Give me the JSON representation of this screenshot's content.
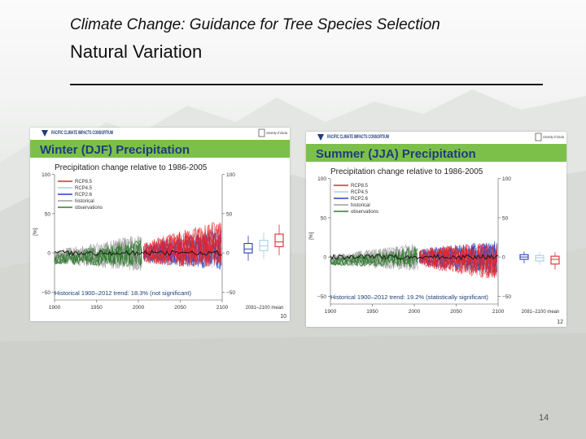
{
  "slide": {
    "title": "Climate Change: Guidance for Tree Species Selection",
    "subtitle": "Natural Variation",
    "number": "14"
  },
  "colors": {
    "header_green": "#7cc04a",
    "title_blue": "#1f3c7a",
    "rcp85": "#e5262c",
    "rcp45": "#a8cde6",
    "rcp26": "#2b3fb8",
    "historical": "#9e9e9e",
    "observations": "#2f7d2f"
  },
  "chart_data": [
    {
      "type": "line",
      "logo": "PACIFIC CLIMATE IMPACTS CONSORTIUM",
      "university": "University of Victoria",
      "title": "Winter (DJF) Precipitation",
      "subtitle": "Precipitation change relative to 1986-2005",
      "ylabel": "[%]",
      "ylim": [
        -60,
        110
      ],
      "y_ticks": [
        "100",
        "50",
        "0",
        "−50"
      ],
      "right_ticks": [
        "100",
        "50",
        "0",
        "−50"
      ],
      "xlim": [
        1900,
        2100
      ],
      "x_ticks": [
        "1900",
        "1950",
        "2000",
        "2050",
        "2100"
      ],
      "box_label": "2081–2100 mean",
      "legend": [
        "RCP8.5",
        "RCP4.5",
        "RCP2.6",
        "historical",
        "observations"
      ],
      "trend_text": "Historical 1900–2012 trend: 18.3% (not significant)",
      "page": "10",
      "series": [
        {
          "name": "RCP8.5",
          "center": [
            0,
            12
          ],
          "spread": 50
        },
        {
          "name": "RCP4.5",
          "center": [
            0,
            8
          ],
          "spread": 45
        },
        {
          "name": "RCP2.6",
          "center": [
            0,
            4
          ],
          "spread": 42
        },
        {
          "name": "historical",
          "center": [
            -5,
            0
          ],
          "spread": 40
        },
        {
          "name": "observations",
          "center": [
            -8,
            0
          ],
          "spread": 30
        }
      ],
      "boxes": [
        {
          "series": "RCP2.6",
          "q1": 0,
          "median": 5,
          "q3": 12,
          "min": -10,
          "max": 22
        },
        {
          "series": "RCP4.5",
          "q1": 3,
          "median": 9,
          "q3": 16,
          "min": -8,
          "max": 26
        },
        {
          "series": "RCP8.5",
          "q1": 8,
          "median": 14,
          "q3": 24,
          "min": -3,
          "max": 36
        }
      ]
    },
    {
      "type": "line",
      "logo": "PACIFIC CLIMATE IMPACTS CONSORTIUM",
      "university": "University of Victoria",
      "title": "Summer (JJA) Precipitation",
      "subtitle": "Precipitation change relative to 1986-2005",
      "ylabel": "[%]",
      "ylim": [
        -60,
        110
      ],
      "y_ticks": [
        "100",
        "50",
        "0",
        "−50"
      ],
      "right_ticks": [
        "100",
        "50",
        "0",
        "−50"
      ],
      "xlim": [
        1900,
        2100
      ],
      "x_ticks": [
        "1900",
        "1950",
        "2000",
        "2050",
        "2100"
      ],
      "box_label": "2081–2100 mean",
      "legend": [
        "RCP8.5",
        "RCP4.5",
        "RCP2.6",
        "historical",
        "observations"
      ],
      "trend_text": "Historical 1900–2012 trend: 19.2% (statistically significant)",
      "page": "12",
      "series": [
        {
          "name": "RCP8.5",
          "center": [
            0,
            -6
          ],
          "spread": 40
        },
        {
          "name": "RCP4.5",
          "center": [
            0,
            -3
          ],
          "spread": 38
        },
        {
          "name": "RCP2.6",
          "center": [
            0,
            -1
          ],
          "spread": 36
        },
        {
          "name": "historical",
          "center": [
            -4,
            0
          ],
          "spread": 30
        },
        {
          "name": "observations",
          "center": [
            -6,
            0
          ],
          "spread": 22
        }
      ],
      "boxes": [
        {
          "series": "RCP2.6",
          "q1": -3,
          "median": 0,
          "q3": 3,
          "min": -8,
          "max": 7
        },
        {
          "series": "RCP4.5",
          "q1": -5,
          "median": -1,
          "q3": 2,
          "min": -10,
          "max": 6
        },
        {
          "series": "RCP8.5",
          "q1": -9,
          "median": -3,
          "q3": 1,
          "min": -16,
          "max": 6
        }
      ]
    }
  ]
}
